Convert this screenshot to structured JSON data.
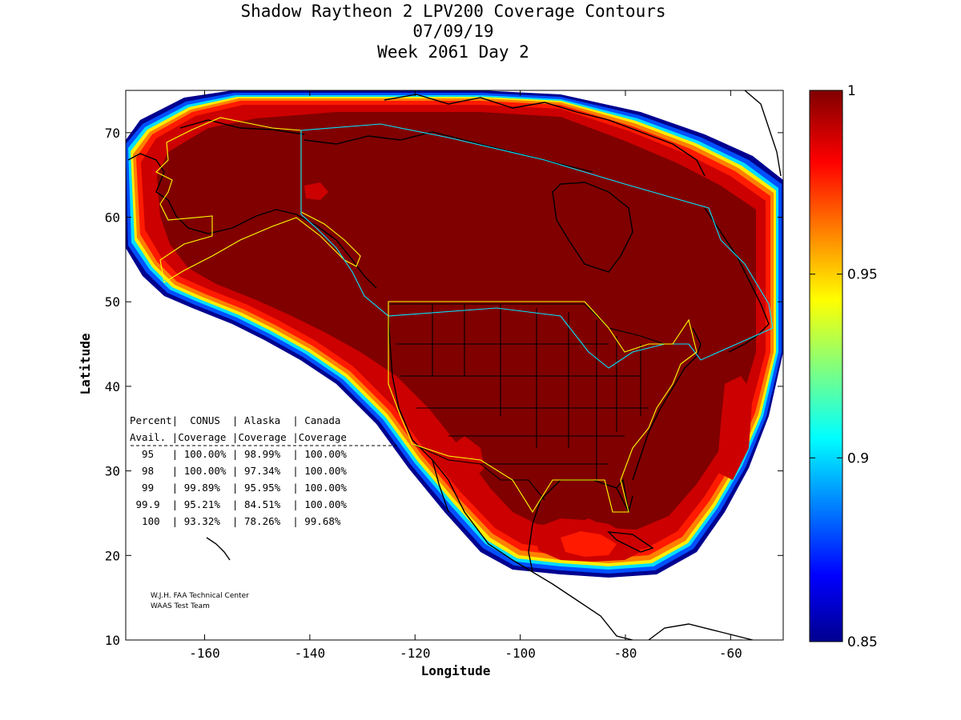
{
  "chart_data": {
    "type": "heatmap",
    "title": [
      "Shadow Raytheon 2 LPV200 Coverage Contours",
      "07/09/19",
      "Week 2061 Day 2"
    ],
    "xlabel": "Longitude",
    "ylabel": "Latitude",
    "xlim": [
      -175,
      -50
    ],
    "ylim": [
      10,
      75
    ],
    "xticks": [
      -160,
      -140,
      -120,
      -100,
      -80,
      -60
    ],
    "yticks": [
      10,
      20,
      30,
      40,
      50,
      60,
      70
    ],
    "colorbar": {
      "range": [
        0.85,
        1
      ],
      "ticks": [
        {
          "value": 1,
          "label": "1"
        },
        {
          "value": 0.95,
          "label": "0.95"
        },
        {
          "value": 0.9,
          "label": "0.9"
        },
        {
          "value": 0.85,
          "label": "0.85"
        }
      ],
      "colormap": "jet"
    },
    "coverage_table": {
      "header_row1": [
        "Percent",
        "CONUS",
        "Alaska",
        "Canada"
      ],
      "header_row2": [
        "Avail.",
        "Coverage",
        "Coverage",
        "Coverage"
      ],
      "rows": [
        [
          "95",
          "100.00%",
          "98.99%",
          "100.00%"
        ],
        [
          "98",
          "100.00%",
          "97.34%",
          "100.00%"
        ],
        [
          "99",
          "99.89%",
          "95.95%",
          "100.00%"
        ],
        [
          "99.9",
          "95.21%",
          "84.51%",
          "100.00%"
        ],
        [
          "100",
          "93.32%",
          "78.26%",
          "99.68%"
        ]
      ]
    },
    "credits": [
      "W.J.H. FAA Technical Center",
      "WAAS Test Team"
    ]
  },
  "colors": {
    "dark_red": "#800000",
    "red": "#cc0000",
    "bright_red": "#ff1a00",
    "orange": "#ff8000",
    "yellow": "#ffee00",
    "cyan": "#00ddff",
    "blue": "#0050ff",
    "navy": "#00008f",
    "boundary_yellow": "#ffff00",
    "boundary_cyan": "#00e5ff"
  }
}
